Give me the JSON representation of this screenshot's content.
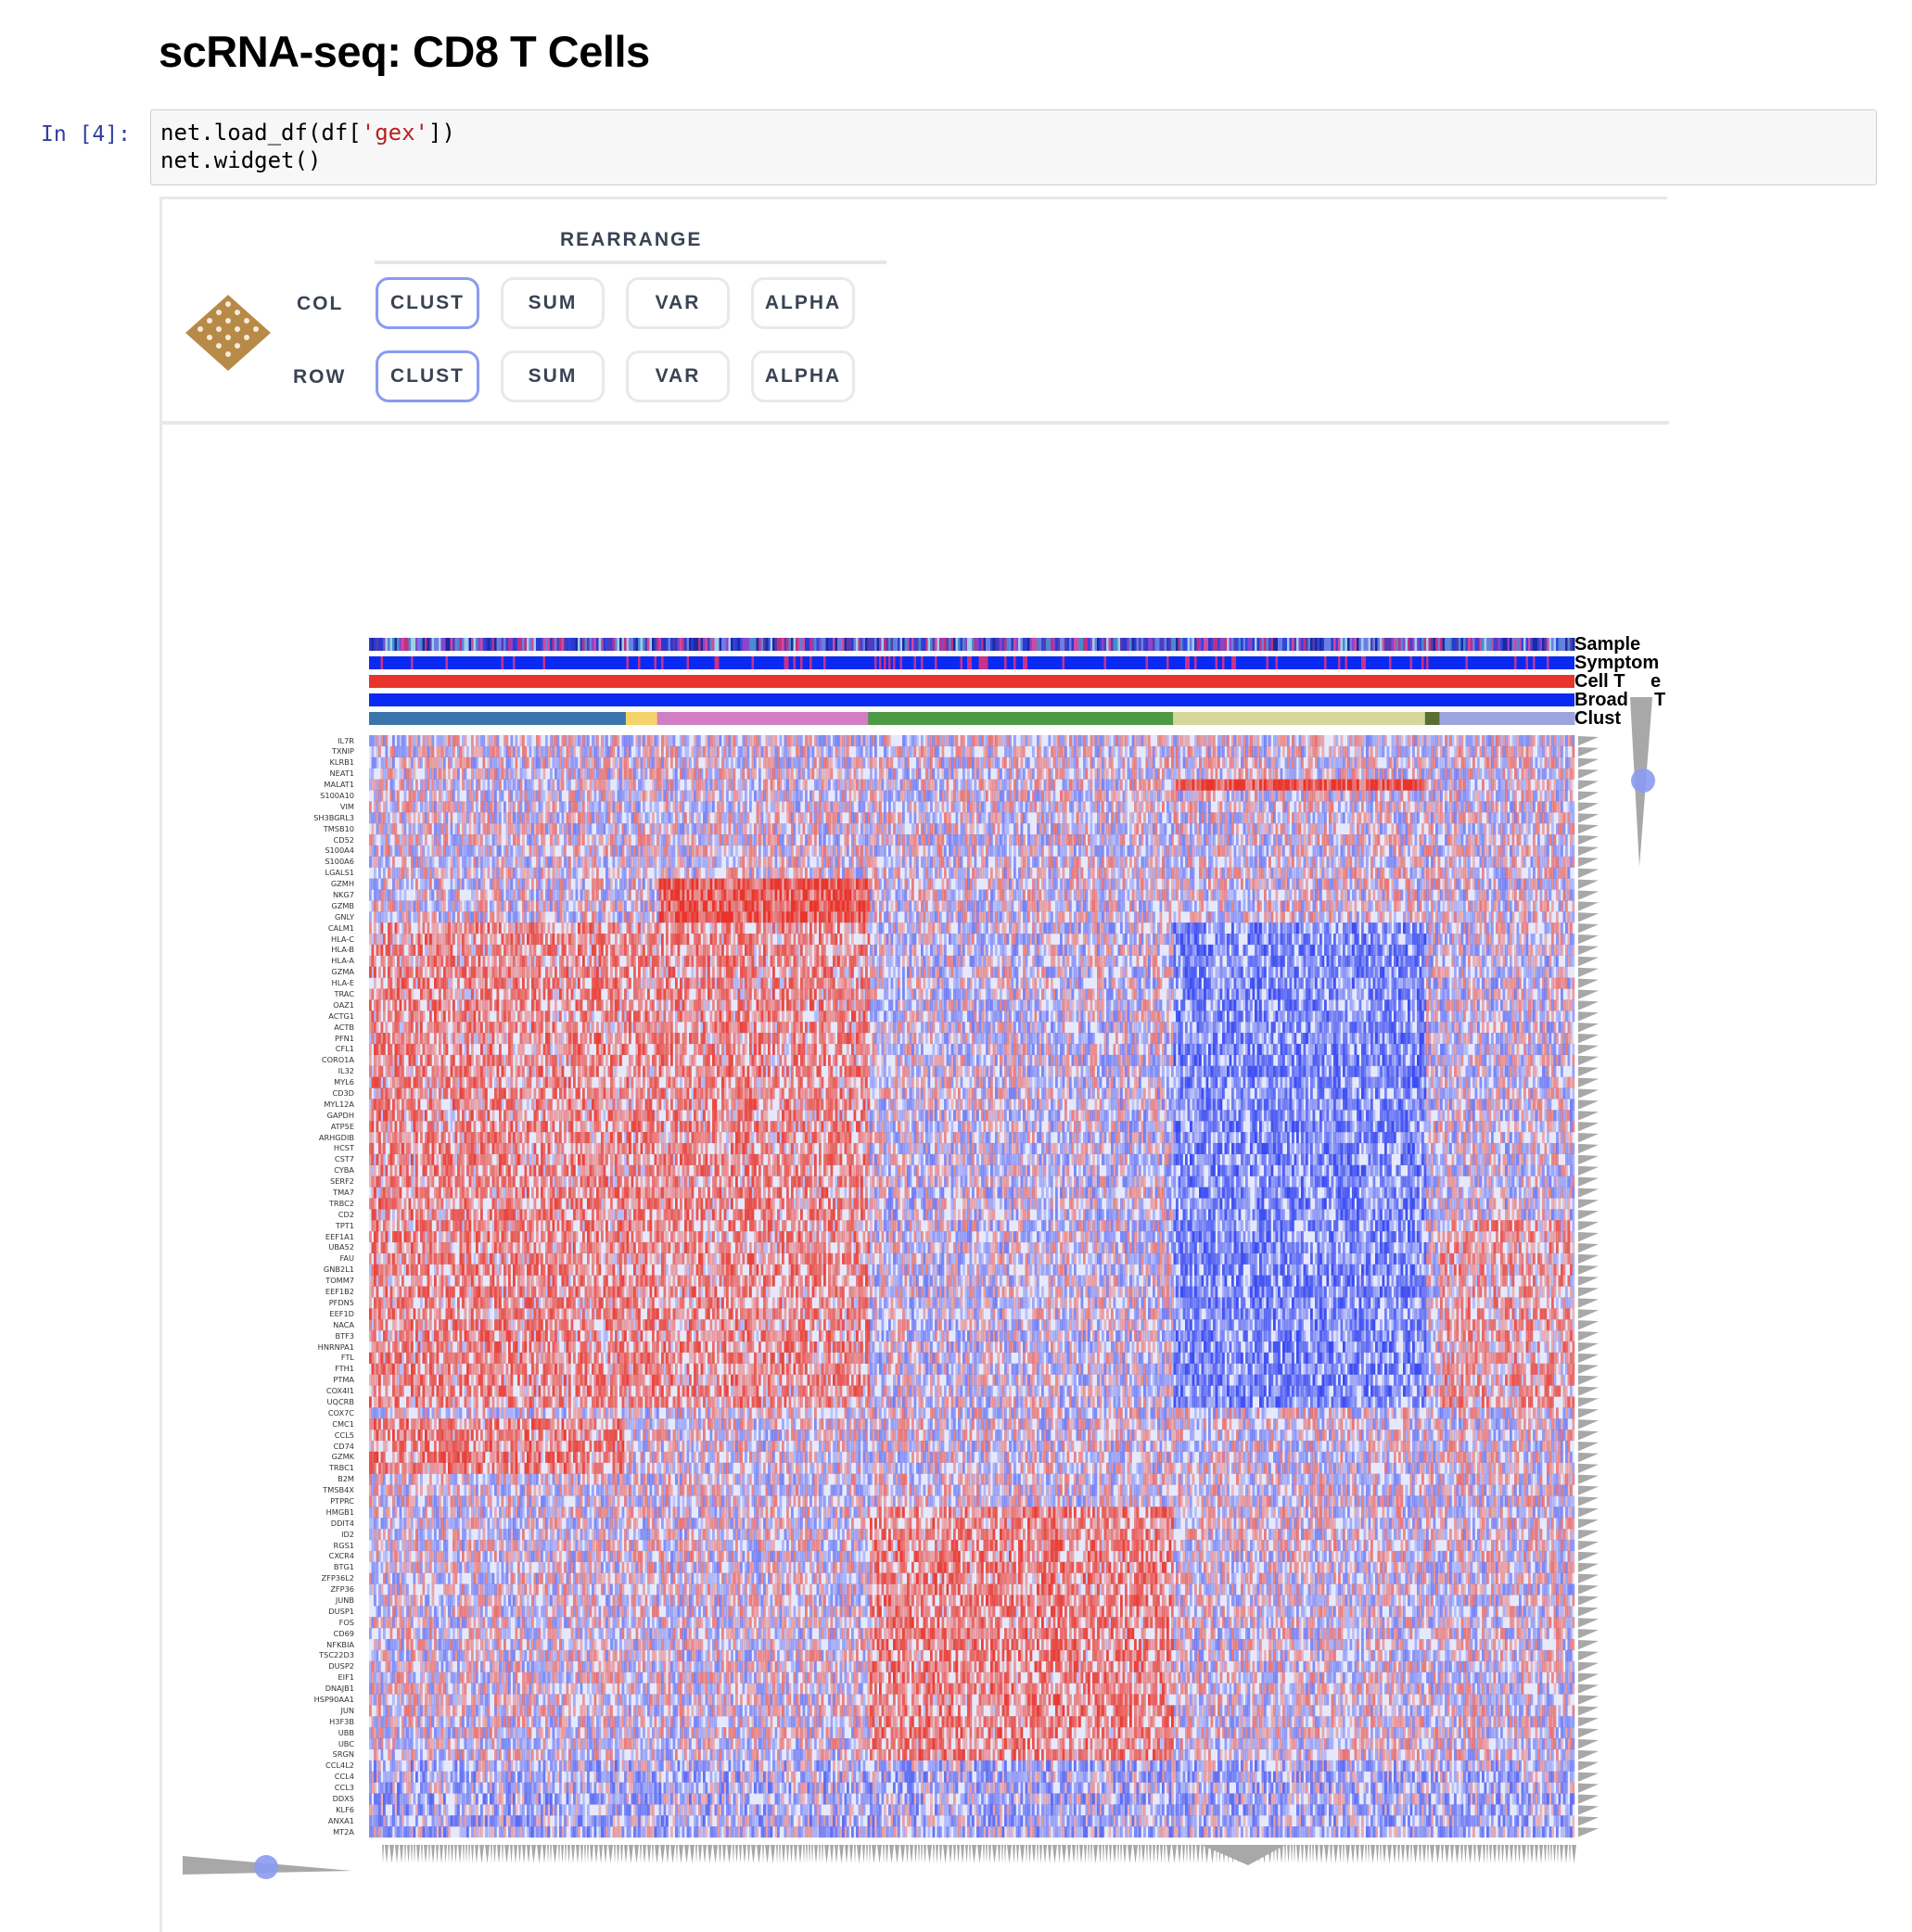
{
  "page_title": "scRNA-seq: CD8 T Cells",
  "cell": {
    "prompt": "In [4]:",
    "code_lines": [
      {
        "pre": "net.load_df(df[",
        "str": "'gex'",
        "post": "])"
      },
      {
        "pre": "net.widget()",
        "str": "",
        "post": ""
      }
    ]
  },
  "widget": {
    "section_title": "REARRANGE",
    "col_label": "COL",
    "row_label": "ROW",
    "col_buttons": [
      "CLUST",
      "SUM",
      "VAR",
      "ALPHA"
    ],
    "row_buttons": [
      "CLUST",
      "SUM",
      "VAR",
      "ALPHA"
    ],
    "active_col_button": "CLUST",
    "active_row_button": "CLUST"
  },
  "category_labels": [
    "Sample",
    "Symptom",
    "Cell T",
    "Broad",
    "Clust"
  ],
  "category_label_fragments": [
    "e",
    "T"
  ],
  "colors": {
    "positive": "#e8342a",
    "negative": "#2b3df0",
    "slider_handle": "#8a9bf0",
    "triangle": "#a8a8a8",
    "cell_type_bar": "#e8342a",
    "broad_bar": "#0a2af2",
    "cluster_colors": [
      "#3a74aa",
      "#f4d46a",
      "#d27ec4",
      "#4c9a46",
      "#d8d79a",
      "#5a6e34",
      "#9fa3dd"
    ]
  },
  "chart_data": {
    "type": "heatmap",
    "row_labels": [
      "IL7R",
      "TXNIP",
      "KLRB1",
      "NEAT1",
      "MALAT1",
      "S100A10",
      "VIM",
      "SH3BGRL3",
      "TMSB10",
      "CD52",
      "S100A4",
      "S100A6",
      "LGALS1",
      "GZMH",
      "NKG7",
      "GZMB",
      "GNLY",
      "CALM1",
      "HLA-C",
      "HLA-B",
      "HLA-A",
      "GZMA",
      "HLA-E",
      "TRAC",
      "OAZ1",
      "ACTG1",
      "ACTB",
      "PFN1",
      "CFL1",
      "CORO1A",
      "IL32",
      "MYL6",
      "CD3D",
      "MYL12A",
      "GAPDH",
      "ATP5E",
      "ARHGDIB",
      "HCST",
      "CST7",
      "CYBA",
      "SERF2",
      "TMA7",
      "TRBC2",
      "CD2",
      "TPT1",
      "EEF1A1",
      "UBA52",
      "FAU",
      "GNB2L1",
      "TOMM7",
      "EEF1B2",
      "PFDN5",
      "EEF1D",
      "NACA",
      "BTF3",
      "HNRNPA1",
      "FTL",
      "FTH1",
      "PTMA",
      "COX4I1",
      "UQCRB",
      "COX7C",
      "CMC1",
      "CCL5",
      "CD74",
      "GZMK",
      "TRBC1",
      "B2M",
      "TMSB4X",
      "PTPRC",
      "HMGB1",
      "DDIT4",
      "ID2",
      "RGS1",
      "CXCR4",
      "BTG1",
      "ZFP36L2",
      "ZFP36",
      "JUNB",
      "DUSP1",
      "FOS",
      "CD69",
      "NFKBIA",
      "TSC22D3",
      "DUSP2",
      "EIF1",
      "DNAJB1",
      "HSP90AA1",
      "JUN",
      "H3F3B",
      "UBB",
      "UBC",
      "SRGN",
      "CCL4L2",
      "CCL4",
      "CCL3",
      "DDX5",
      "KLF6",
      "ANXA1",
      "MT2A"
    ],
    "column_categories": [
      "Sample",
      "Symptom",
      "Cell Type",
      "Broad Type",
      "Cluster"
    ],
    "cluster_fractions": [
      0.213,
      0.026,
      0.175,
      0.253,
      0.209,
      0.012,
      0.112
    ],
    "color_scale": {
      "negative": "#2b3df0",
      "zero": "#ffffff",
      "positive": "#e8342a"
    },
    "row_order": "clust",
    "col_order": "clust"
  }
}
